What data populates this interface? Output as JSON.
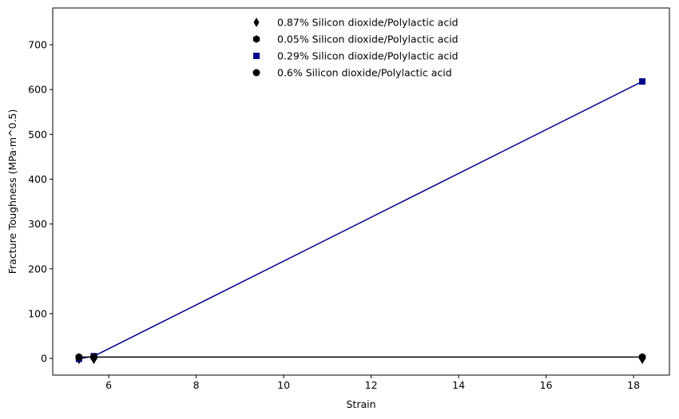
{
  "chart_data": {
    "type": "scatter",
    "xlabel": "Strain",
    "ylabel": "Fracture Toughness (MPa·m^0.5)",
    "xlim": [
      4.72,
      18.82
    ],
    "ylim": [
      -37.2,
      782.0
    ],
    "xticks": [
      6,
      8,
      10,
      12,
      14,
      16,
      18
    ],
    "yticks": [
      0,
      100,
      200,
      300,
      400,
      500,
      600,
      700
    ],
    "grid": false,
    "legend_position": "top-center",
    "series": [
      {
        "name": "0.87% Silicon dioxide/Polylactic acid",
        "marker": "thin_diamond",
        "color": "#000000",
        "line": false,
        "x": [
          5.32,
          5.66,
          18.2
        ],
        "y": [
          -2,
          -2,
          -2
        ]
      },
      {
        "name": "0.05% Silicon dioxide/Polylactic acid",
        "marker": "hexagon",
        "color": "#000000",
        "line": false,
        "x": [
          5.32,
          5.66,
          18.2
        ],
        "y": [
          3,
          3,
          3
        ]
      },
      {
        "name": "0.29% Silicon dioxide/Polylactic acid",
        "marker": "square",
        "color": "#00008b",
        "line": true,
        "x": [
          5.32,
          5.66,
          18.2
        ],
        "y": [
          -1,
          5,
          618
        ]
      },
      {
        "name": "0.6% Silicon dioxide/Polylactic acid",
        "marker": "circle",
        "color": "#000000",
        "line": true,
        "x": [
          5.32,
          5.66,
          18.2
        ],
        "y": [
          3,
          3,
          3
        ]
      }
    ]
  }
}
